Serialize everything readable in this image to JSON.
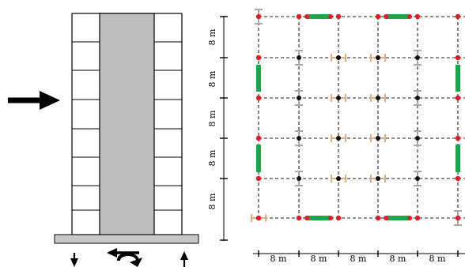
{
  "plan": {
    "span_label": "8 m",
    "x_spans": [
      "8 m",
      "8 m",
      "8 m",
      "8 m",
      "8 m"
    ],
    "y_spans": [
      "8 m",
      "8 m",
      "8 m",
      "8 m",
      "8 m"
    ]
  },
  "colors": {
    "core_wall": "#bebebe",
    "base_plate": "#c8c8c8",
    "shear_wall": "#1aa64b",
    "column_node": "#e31b23",
    "gravity_node": "#111111",
    "brace_gray": "#a7a7a7",
    "brace_tan": "#e0ae82"
  },
  "icons": {
    "lateral_load": "arrow-right-icon",
    "axial_down": "arrow-down-icon",
    "moment": "curved-arrow-icon",
    "axial_up": "arrow-up-icon"
  }
}
